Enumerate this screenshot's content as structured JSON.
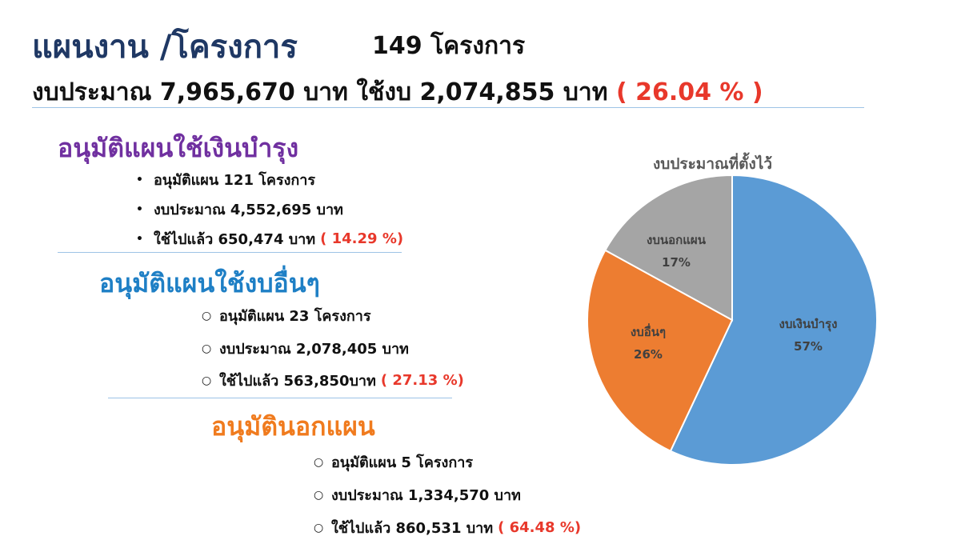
{
  "header": {
    "title": "แผนงาน /โครงการ",
    "project_count": "149  โครงการ",
    "budget_text": "งบประมาณ 7,965,670 บาท  ใช้งบ 2,074,855 บาท ",
    "budget_pct": " ( 26.04 % )"
  },
  "sections": [
    {
      "heading": "อนุมัติแผนใช้เงินบำรุง",
      "color": "#7030a0",
      "items": [
        {
          "text": "อนุมัติแผน  121 โครงการ",
          "pct": ""
        },
        {
          "text": "งบประมาณ 4,552,695 บาท",
          "pct": ""
        },
        {
          "text": "ใช้ไปแล้ว 650,474 บาท",
          "pct": "( 14.29 %)"
        }
      ]
    },
    {
      "heading": "อนุมัติแผนใช้งบอื่นๆ",
      "color": "#1e7fc5",
      "items": [
        {
          "text": "อนุมัติแผน  23 โครงการ",
          "pct": ""
        },
        {
          "text": "งบประมาณ 2,078,405 บาท",
          "pct": ""
        },
        {
          "text": "ใช้ไปแล้ว 563,850บาท",
          "pct": "( 27.13  %)"
        }
      ]
    },
    {
      "heading": "อนุมัตินอกแผน",
      "color": "#f07b1e",
      "items": [
        {
          "text": "อนุมัติแผน  5 โครงการ",
          "pct": ""
        },
        {
          "text": "งบประมาณ 1,334,570 บาท",
          "pct": ""
        },
        {
          "text": "ใช้ไปแล้ว 860,531 บาท",
          "pct": "(  64.48  %)"
        }
      ]
    }
  ],
  "chart_data": {
    "type": "pie",
    "title": "งบประมาณที่ตั้งไว้",
    "slices": [
      {
        "label": "งบเงินบำรุง",
        "value": 57,
        "display": "57%",
        "color": "#5b9bd5"
      },
      {
        "label": "งบอื่นๆ",
        "value": 26,
        "display": "26%",
        "color": "#ed7d31"
      },
      {
        "label": "งบนอกแผน",
        "value": 17,
        "display": "17%",
        "color": "#a5a5a5"
      }
    ],
    "start": "12 o'clock",
    "direction": "clockwise",
    "legend": "none"
  }
}
